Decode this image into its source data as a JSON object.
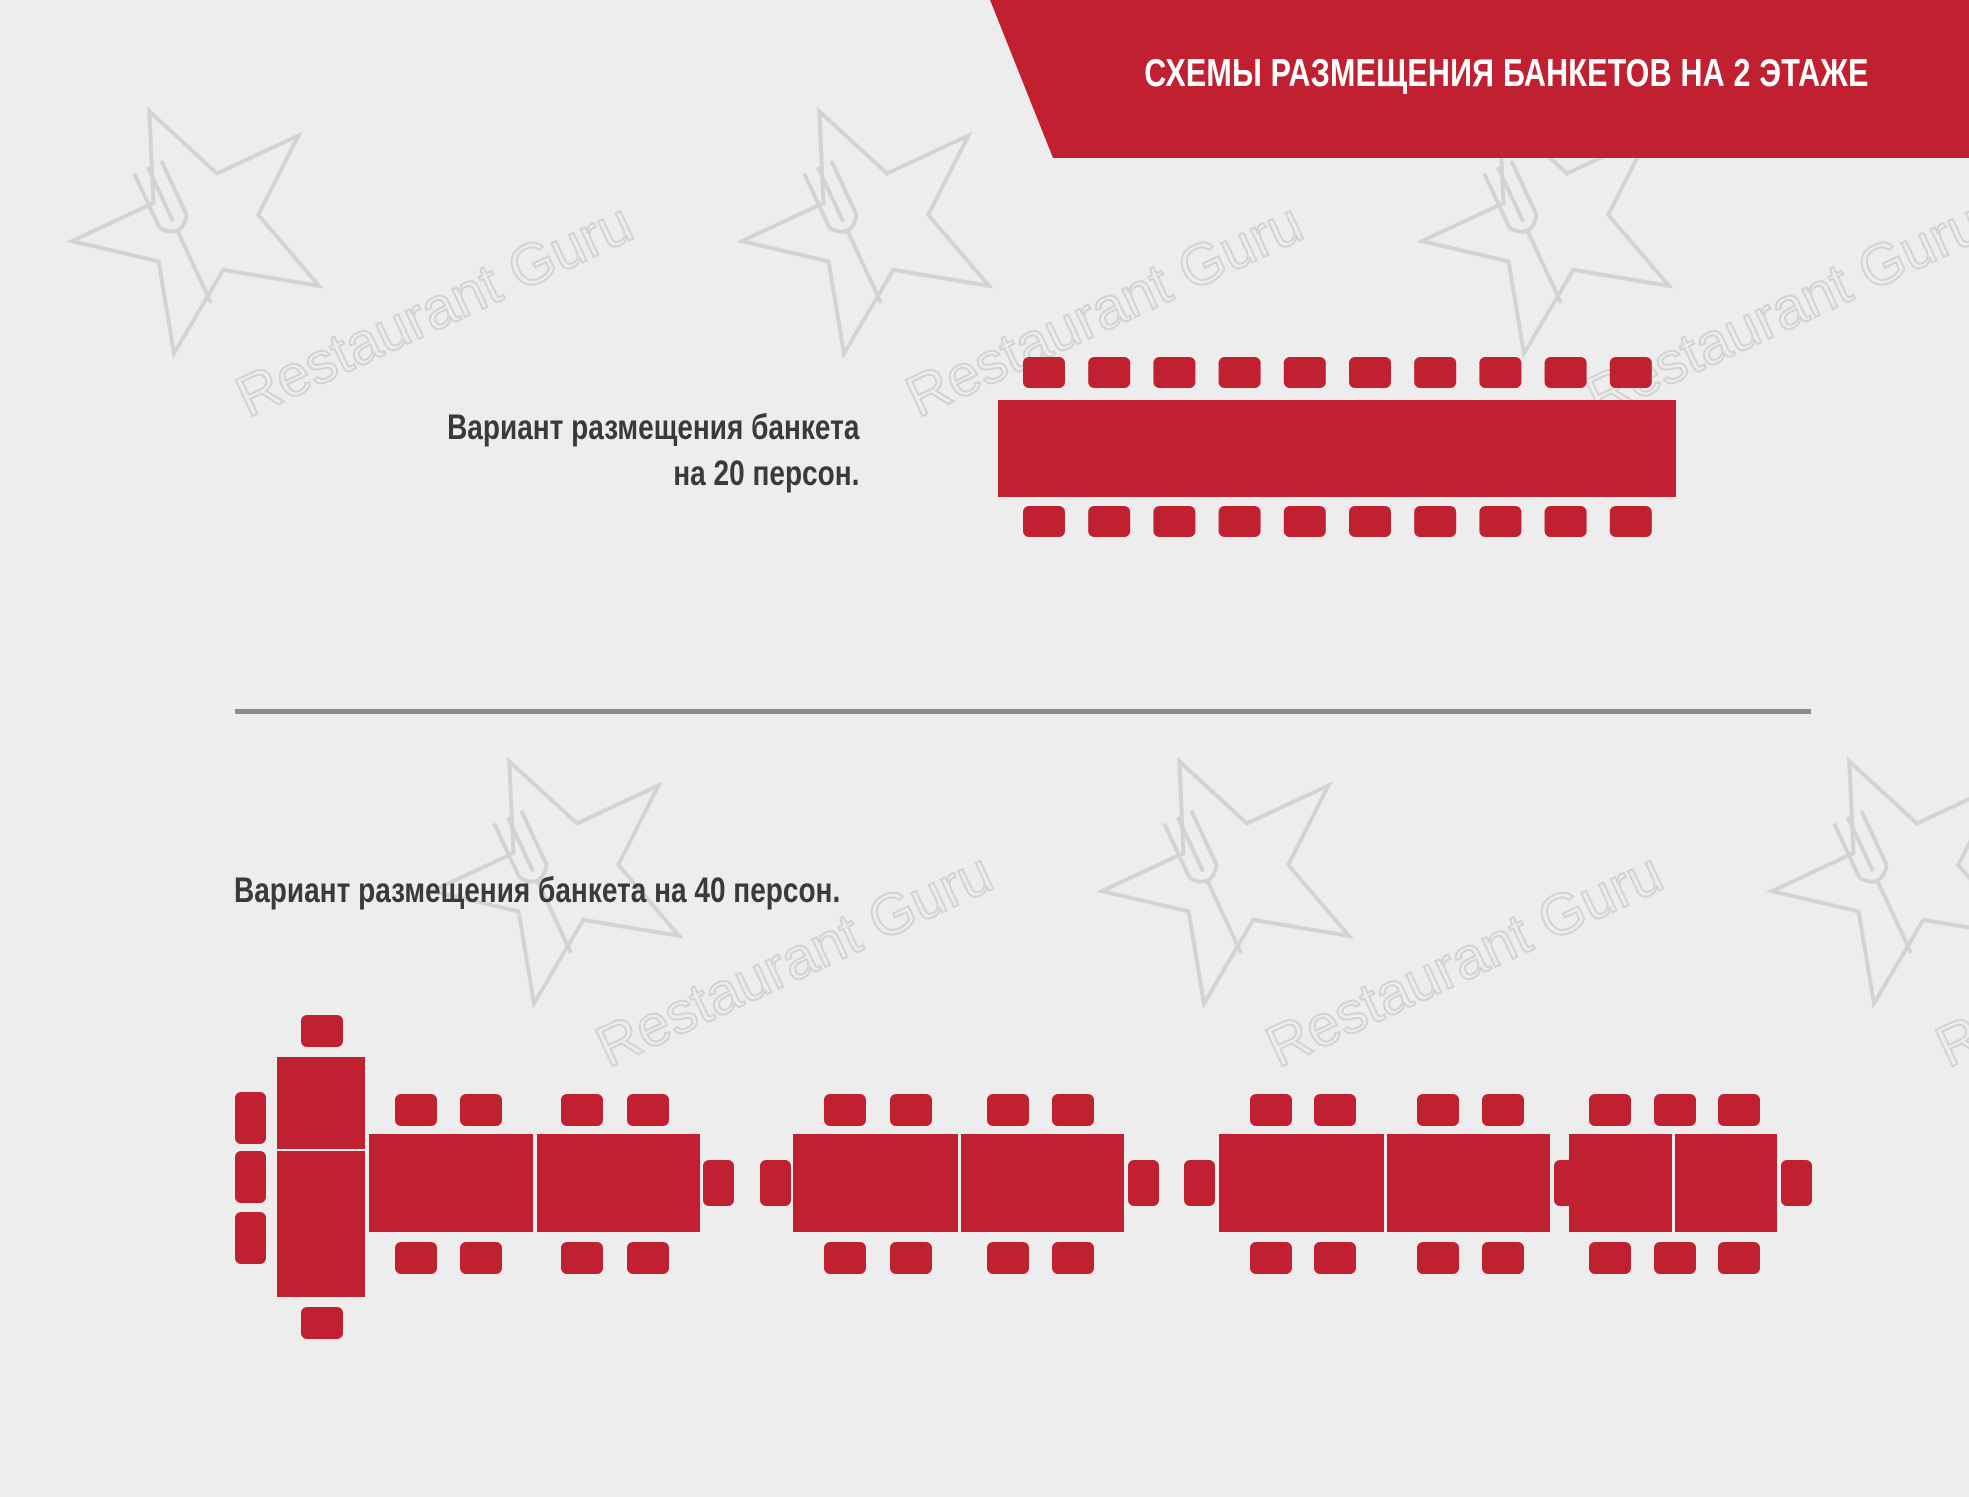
{
  "header": {
    "title": "СХЕМЫ РАЗМЕЩЕНИЯ БАНКЕТОВ НА 2 ЭТАЖЕ"
  },
  "colors": {
    "accent": "#c0202f",
    "background": "#ededed",
    "text": "#3a3a3a",
    "divider": "#8c8c8c",
    "watermark": "#d3d3d3"
  },
  "layouts": {
    "banquet_20": {
      "caption_line1": "Вариант размещения банкета",
      "caption_line2": "на 20 персон.",
      "guests": 20
    },
    "banquet_40": {
      "caption": "Вариант размещения банкета на 40 персон.",
      "guests": 40
    }
  },
  "watermark": {
    "text": "Restaurant Guru",
    "icon": "star-fork-icon"
  }
}
